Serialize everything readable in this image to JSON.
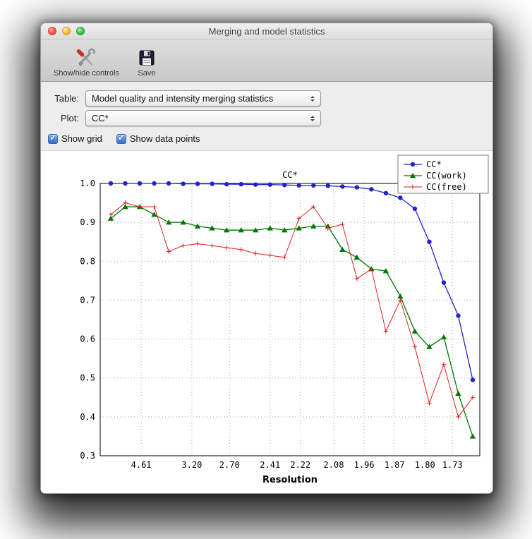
{
  "window": {
    "title": "Merging and model statistics"
  },
  "toolbar": {
    "items": [
      {
        "label": "Show/hide controls",
        "icon": "tools-icon"
      },
      {
        "label": "Save",
        "icon": "save-icon"
      }
    ]
  },
  "controls": {
    "table": {
      "label": "Table:",
      "value": "Model quality and intensity merging statistics"
    },
    "plot": {
      "label": "Plot:",
      "value": "CC*"
    },
    "checkboxes": [
      {
        "label": "Show grid",
        "checked": true
      },
      {
        "label": "Show data points",
        "checked": true
      }
    ]
  },
  "chart_data": {
    "type": "line",
    "title": "CC*",
    "xlabel": "Resolution",
    "ylabel": "",
    "grid": true,
    "legend_position": "upper right",
    "ylim": [
      0.3,
      1.0
    ],
    "yticks": [
      0.3,
      0.4,
      0.5,
      0.6,
      0.7,
      0.8,
      0.9,
      1.0
    ],
    "n_bins": 26,
    "xticks": [
      {
        "label": "4.61",
        "pos": 2.1
      },
      {
        "label": "3.20",
        "pos": 5.6
      },
      {
        "label": "2.70",
        "pos": 8.2
      },
      {
        "label": "2.41",
        "pos": 11.0
      },
      {
        "label": "2.22",
        "pos": 13.1
      },
      {
        "label": "2.08",
        "pos": 15.4
      },
      {
        "label": "1.96",
        "pos": 17.5
      },
      {
        "label": "1.87",
        "pos": 19.6
      },
      {
        "label": "1.80",
        "pos": 21.7
      },
      {
        "label": "1.73",
        "pos": 23.6
      }
    ],
    "series": [
      {
        "name": "CC*",
        "color": "#2222cc",
        "marker": "circle",
        "values": [
          1.0,
          1.0,
          1.0,
          1.0,
          1.0,
          0.999,
          0.999,
          0.999,
          0.998,
          0.998,
          0.997,
          0.997,
          0.996,
          0.995,
          0.995,
          0.994,
          0.992,
          0.99,
          0.985,
          0.975,
          0.963,
          0.935,
          0.85,
          0.745,
          0.66,
          0.495
        ]
      },
      {
        "name": "CC(work)",
        "color": "#007700",
        "marker": "triangle",
        "values": [
          0.91,
          0.94,
          0.94,
          0.92,
          0.9,
          0.9,
          0.89,
          0.885,
          0.88,
          0.88,
          0.88,
          0.885,
          0.88,
          0.885,
          0.89,
          0.89,
          0.83,
          0.81,
          0.78,
          0.775,
          0.71,
          0.62,
          0.58,
          0.605,
          0.46,
          0.35
        ]
      },
      {
        "name": "CC(free)",
        "color": "#dd2222",
        "marker": "plus",
        "values": [
          0.92,
          0.95,
          0.94,
          0.94,
          0.825,
          0.84,
          0.845,
          0.84,
          0.835,
          0.83,
          0.82,
          0.815,
          0.81,
          0.91,
          0.94,
          0.885,
          0.895,
          0.755,
          0.78,
          0.62,
          0.7,
          0.58,
          0.435,
          0.535,
          0.4,
          0.45
        ]
      }
    ]
  }
}
